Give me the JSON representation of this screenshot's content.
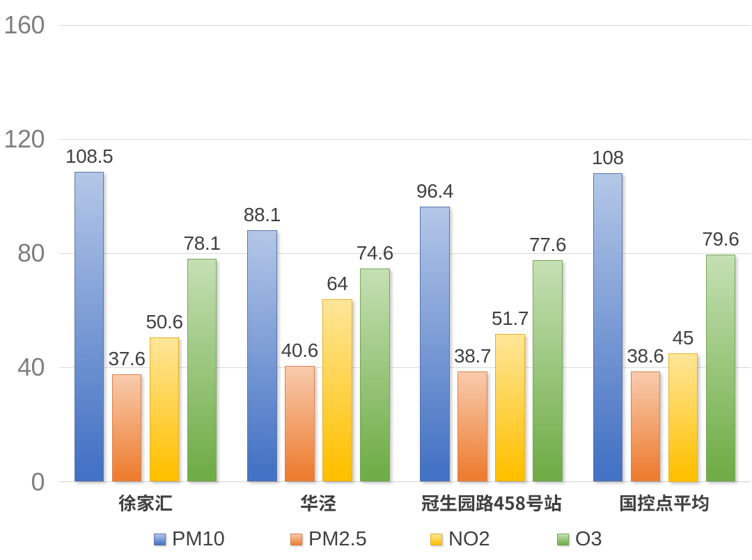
{
  "page": {
    "background": "#FFFFFF",
    "title": ""
  },
  "chart_data": {
    "type": "bar",
    "title": "",
    "xlabel": "",
    "ylabel": "",
    "categories": [
      "徐家汇",
      "华泾",
      "冠生园路458号站",
      "国控点平均"
    ],
    "series": [
      {
        "name": "PM10",
        "color": "#4472C4",
        "color_light": "#B4C7E7",
        "border": "#5B74AC",
        "values": [
          108.5,
          88.1,
          96.4,
          108
        ]
      },
      {
        "name": "PM2.5",
        "color": "#ED7D31",
        "color_light": "#F8CBAD",
        "border": "#DC8148",
        "values": [
          37.6,
          40.6,
          38.7,
          38.6
        ]
      },
      {
        "name": "NO2",
        "color": "#FFC000",
        "color_light": "#FFE699",
        "border": "#E6B02A",
        "values": [
          50.6,
          64,
          51.7,
          45
        ]
      },
      {
        "name": "O3",
        "color": "#70AD47",
        "color_light": "#C5E0B4",
        "border": "#78A557",
        "values": [
          78.1,
          74.6,
          77.6,
          79.6
        ]
      }
    ],
    "y_axis": {
      "min": 0,
      "max": 160,
      "ticks": [
        0,
        40,
        80,
        120,
        160
      ]
    },
    "grid": true,
    "data_labels": true,
    "legend_position": "bottom",
    "legend": [
      "PM10",
      "PM2.5",
      "NO2",
      "O3"
    ],
    "styles": {
      "gridline_color": "#D9D9D9",
      "axis_line_color": "#D2D2D2",
      "tick_label_color": "#7F7F7F",
      "data_label_color": "#404040",
      "category_label_color": "#404040",
      "legend_text_color": "#404040"
    }
  }
}
